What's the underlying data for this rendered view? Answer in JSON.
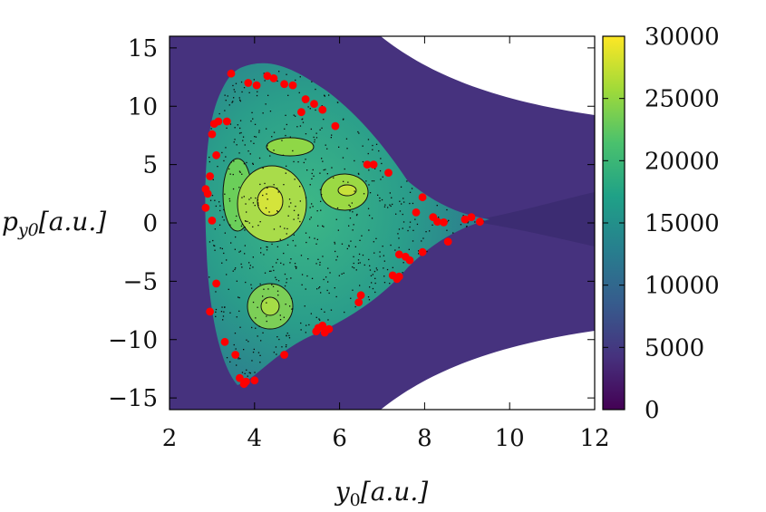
{
  "chart_data": {
    "type": "heatmap",
    "title": "",
    "xlabel": "y0[a.u.]",
    "ylabel": "py0[a.u.]",
    "xlabel_parts": {
      "base": "y",
      "sub": "0",
      "rest": "[a.u.]"
    },
    "ylabel_parts": {
      "base": "p",
      "sub": "y0",
      "rest": "[a.u.]"
    },
    "xlim": [
      2,
      12
    ],
    "ylim": [
      -16,
      16
    ],
    "x_ticks": [
      2,
      4,
      6,
      8,
      10,
      12
    ],
    "y_ticks": [
      -15,
      -10,
      -5,
      0,
      5,
      10,
      15
    ],
    "x_tick_labels": [
      "2",
      "4",
      "6",
      "8",
      "10",
      "12"
    ],
    "y_tick_labels": [
      "−15",
      "−10",
      "−5",
      "0",
      "5",
      "10",
      "15"
    ],
    "colorbar": {
      "range": [
        0,
        30000
      ],
      "ticks": [
        0,
        5000,
        10000,
        15000,
        20000,
        25000,
        30000
      ],
      "tick_labels": [
        "0",
        "5000",
        "10000",
        "15000",
        "20000",
        "25000",
        "30000"
      ],
      "colormap": "viridis",
      "stops": [
        "#440154",
        "#46327e",
        "#365c8d",
        "#277f8e",
        "#1fa187",
        "#4ac16d",
        "#a0da39",
        "#fde725"
      ]
    },
    "background_color": "#46327e",
    "region_color": "#2a9d8a",
    "island_color": "#7fd34e",
    "marker_color": "#ff0000",
    "red_points": [
      [
        3.45,
        12.8
      ],
      [
        3.85,
        12.0
      ],
      [
        4.05,
        11.8
      ],
      [
        4.3,
        12.6
      ],
      [
        4.45,
        12.4
      ],
      [
        4.7,
        11.9
      ],
      [
        4.9,
        11.8
      ],
      [
        5.2,
        10.6
      ],
      [
        5.4,
        10.2
      ],
      [
        5.6,
        9.7
      ],
      [
        5.1,
        9.5
      ],
      [
        5.9,
        8.3
      ],
      [
        3.15,
        8.7
      ],
      [
        3.35,
        8.7
      ],
      [
        3.05,
        8.5
      ],
      [
        3.0,
        7.6
      ],
      [
        3.1,
        5.8
      ],
      [
        6.65,
        5.0
      ],
      [
        6.8,
        5.0
      ],
      [
        7.15,
        4.3
      ],
      [
        2.95,
        4.0
      ],
      [
        2.85,
        2.9
      ],
      [
        2.9,
        2.5
      ],
      [
        2.85,
        1.3
      ],
      [
        3.0,
        0.2
      ],
      [
        7.95,
        2.2
      ],
      [
        7.8,
        0.9
      ],
      [
        8.2,
        0.5
      ],
      [
        8.3,
        0.1
      ],
      [
        8.45,
        0.05
      ],
      [
        8.95,
        0.3
      ],
      [
        9.1,
        0.5
      ],
      [
        9.3,
        0.1
      ],
      [
        8.55,
        -1.6
      ],
      [
        7.95,
        -2.5
      ],
      [
        7.55,
        -2.9
      ],
      [
        7.65,
        -3.2
      ],
      [
        7.4,
        -2.7
      ],
      [
        7.25,
        -4.5
      ],
      [
        7.35,
        -4.8
      ],
      [
        7.4,
        -4.6
      ],
      [
        3.1,
        -5.2
      ],
      [
        6.5,
        -6.2
      ],
      [
        6.45,
        -6.8
      ],
      [
        2.95,
        -7.6
      ],
      [
        5.5,
        -9.0
      ],
      [
        5.6,
        -8.8
      ],
      [
        5.75,
        -9.1
      ],
      [
        5.45,
        -9.3
      ],
      [
        5.65,
        -9.4
      ],
      [
        3.3,
        -10.2
      ],
      [
        3.55,
        -11.3
      ],
      [
        4.7,
        -11.3
      ],
      [
        3.65,
        -13.3
      ],
      [
        3.75,
        -13.8
      ],
      [
        3.8,
        -13.6
      ],
      [
        4.0,
        -13.5
      ]
    ]
  }
}
